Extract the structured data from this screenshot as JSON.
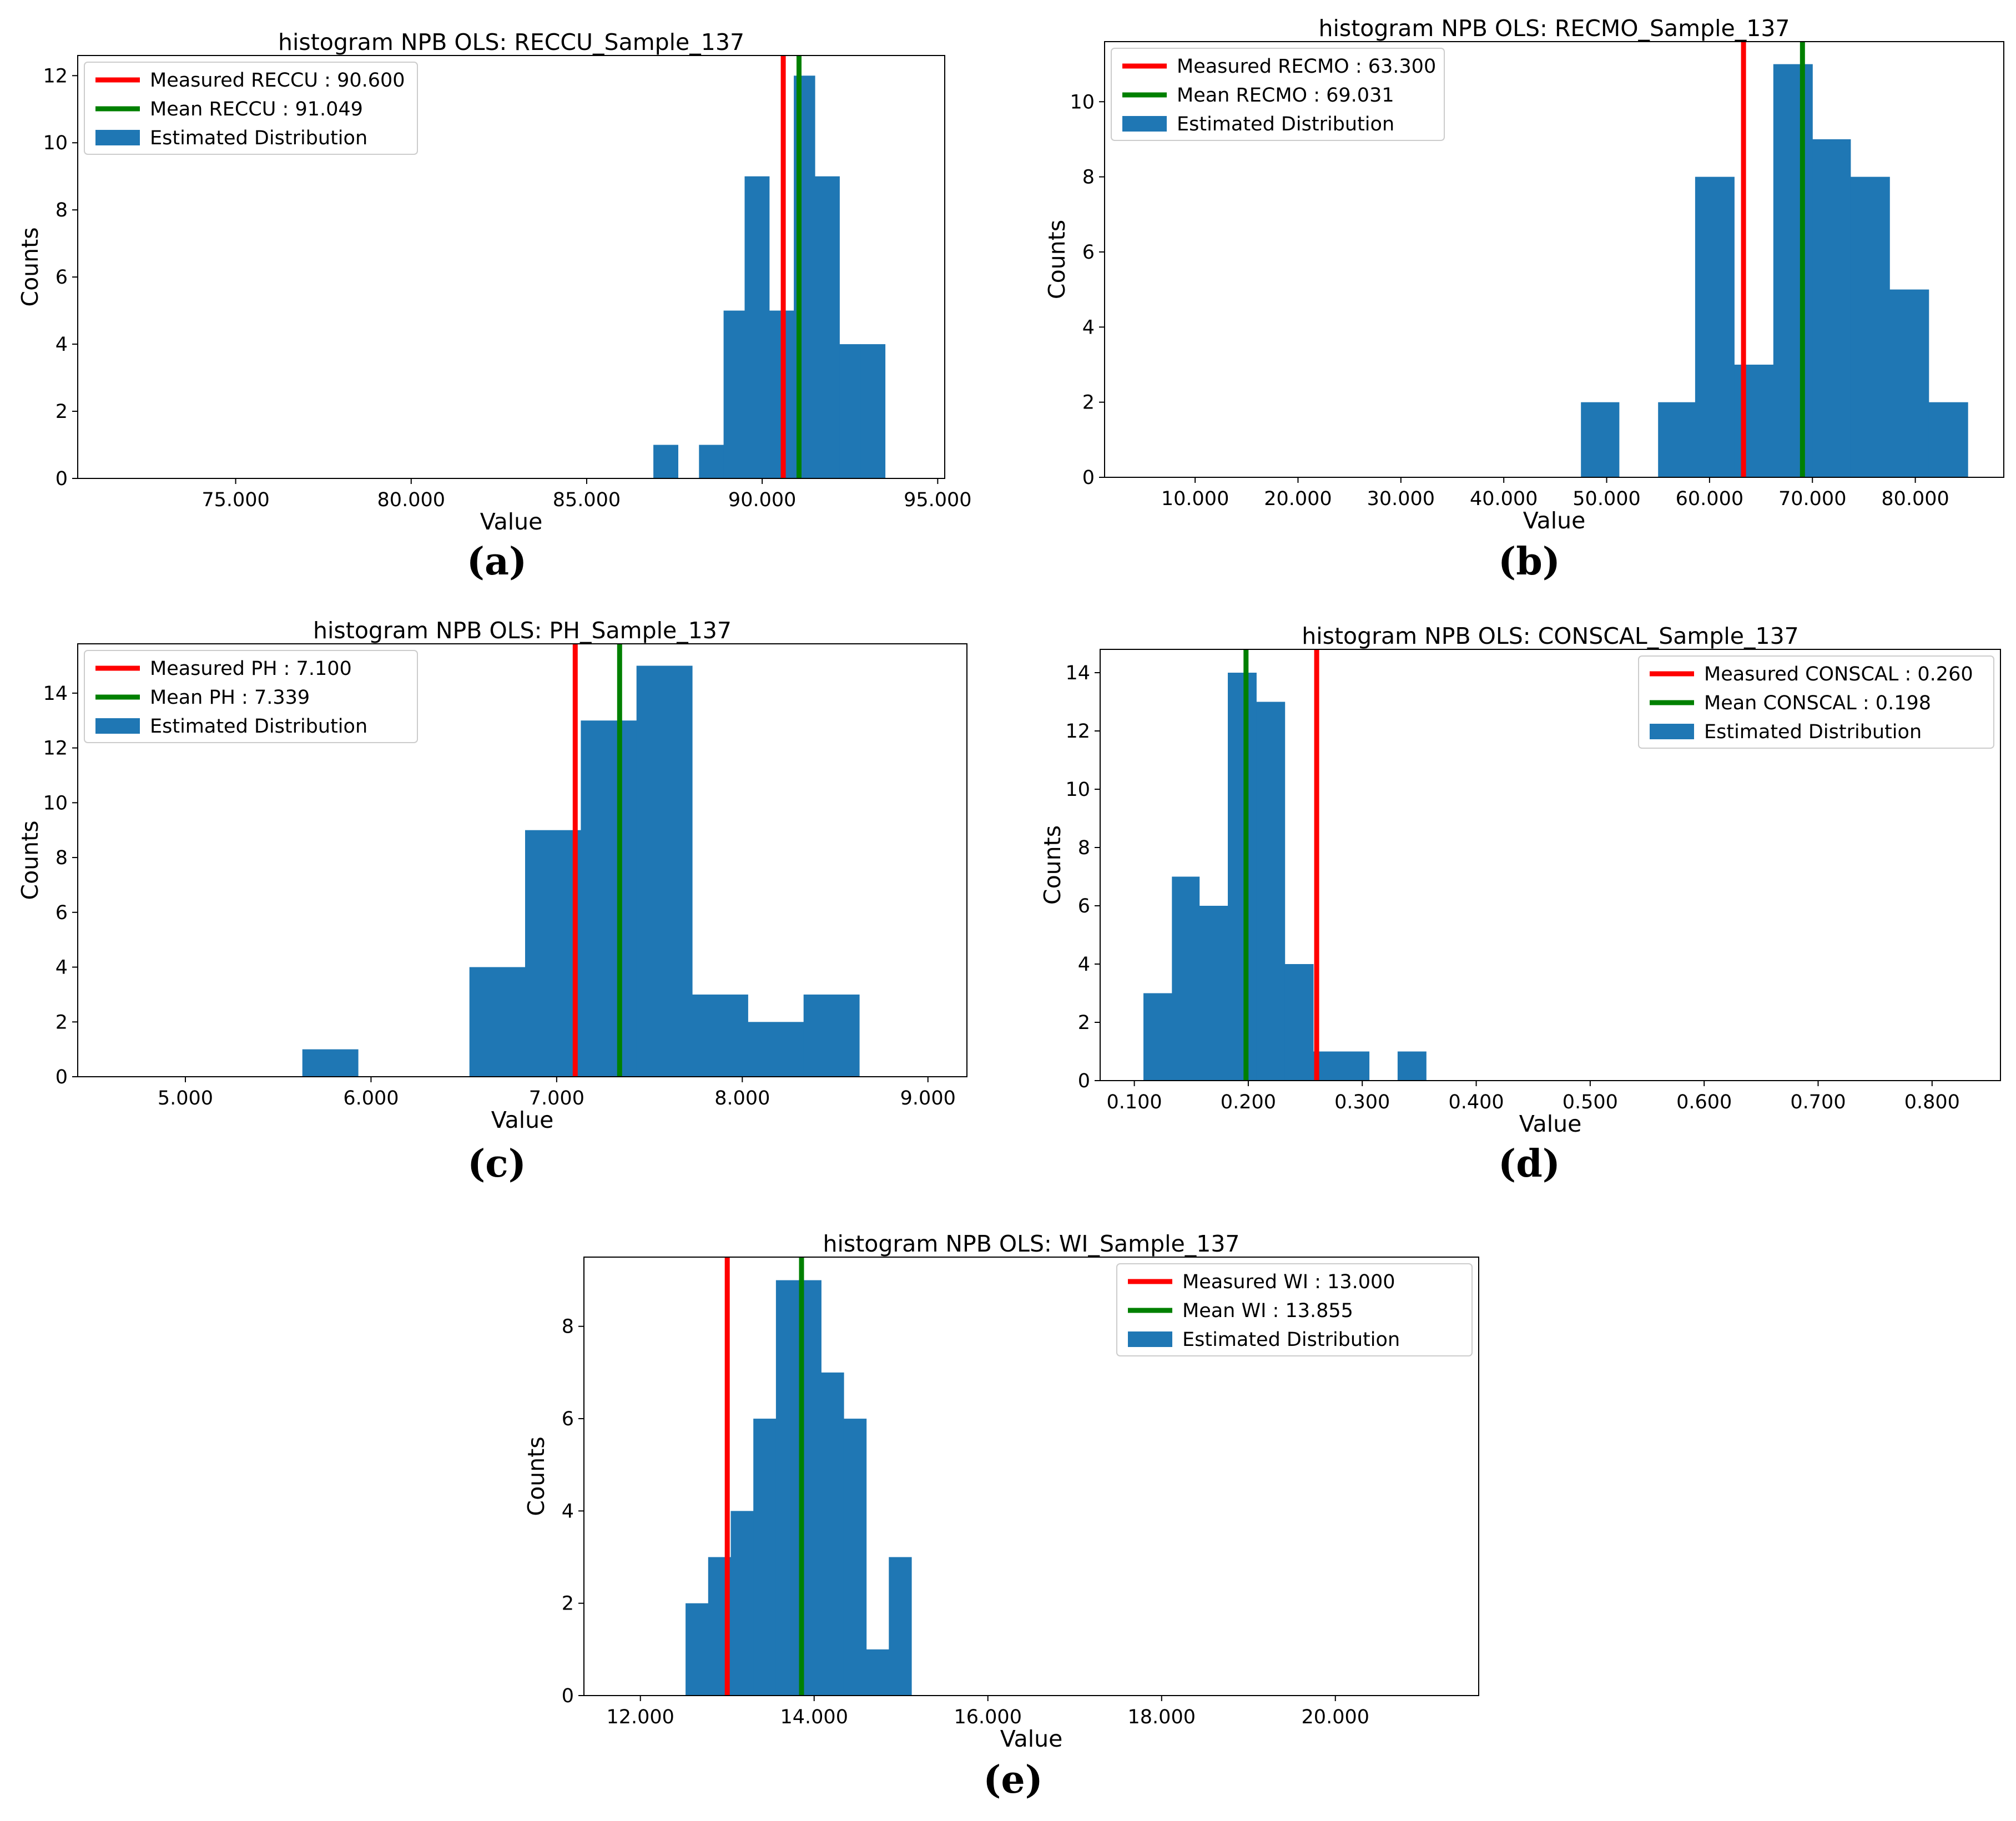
{
  "colors": {
    "bars": "#1f77b4",
    "measured": "#ff0000",
    "mean": "#008000",
    "axes": "#000000",
    "legend_border": "#cccccc"
  },
  "chart_data": [
    {
      "id": "a",
      "type": "bar",
      "caption": "(a)",
      "title": "histogram NPB OLS: RECCU_Sample_137",
      "xlabel": "Value",
      "ylabel": "Counts",
      "xlim": [
        70.5,
        95.2
      ],
      "ylim": [
        0,
        12.6
      ],
      "xticks": [
        75,
        80,
        85,
        90,
        95
      ],
      "xtick_labels": [
        "75.000",
        "80.000",
        "85.000",
        "90.000",
        "95.000"
      ],
      "yticks": [
        0,
        2,
        4,
        6,
        8,
        10,
        12
      ],
      "legend_position": "top-left",
      "measured": {
        "label": "Measured RECCU  : 90.600",
        "value": 90.6
      },
      "mean": {
        "label": "Mean RECCU  : 91.049",
        "value": 91.049
      },
      "dist_label": "Estimated Distribution",
      "bins": [
        {
          "x0": 86.9,
          "x1": 87.6,
          "count": 1
        },
        {
          "x0": 88.2,
          "x1": 88.9,
          "count": 1
        },
        {
          "x0": 88.9,
          "x1": 89.5,
          "count": 5
        },
        {
          "x0": 89.5,
          "x1": 90.2,
          "count": 9
        },
        {
          "x0": 90.2,
          "x1": 90.9,
          "count": 5
        },
        {
          "x0": 90.9,
          "x1": 91.5,
          "count": 12
        },
        {
          "x0": 91.5,
          "x1": 92.2,
          "count": 9
        },
        {
          "x0": 92.2,
          "x1": 92.8,
          "count": 4
        },
        {
          "x0": 92.8,
          "x1": 93.5,
          "count": 4
        }
      ]
    },
    {
      "id": "b",
      "type": "bar",
      "caption": "(b)",
      "title": "histogram NPB OLS: RECMO_Sample_137",
      "xlabel": "Value",
      "ylabel": "Counts",
      "xlim": [
        1.2,
        88.6
      ],
      "ylim": [
        0,
        11.6
      ],
      "xticks": [
        10,
        20,
        30,
        40,
        50,
        60,
        70,
        80
      ],
      "xtick_labels": [
        "10.000",
        "20.000",
        "30.000",
        "40.000",
        "50.000",
        "60.000",
        "70.000",
        "80.000"
      ],
      "yticks": [
        0,
        2,
        4,
        6,
        8,
        10
      ],
      "legend_position": "top-left",
      "measured": {
        "label": "Measured RECMO  : 63.300",
        "value": 63.3
      },
      "mean": {
        "label": "Mean RECMO  : 69.031",
        "value": 69.031
      },
      "dist_label": "Estimated Distribution",
      "bins": [
        {
          "x0": 47.5,
          "x1": 51.2,
          "count": 2
        },
        {
          "x0": 55.0,
          "x1": 58.6,
          "count": 2
        },
        {
          "x0": 58.6,
          "x1": 62.4,
          "count": 8
        },
        {
          "x0": 62.4,
          "x1": 66.2,
          "count": 3
        },
        {
          "x0": 66.2,
          "x1": 70.0,
          "count": 11
        },
        {
          "x0": 70.0,
          "x1": 73.7,
          "count": 9
        },
        {
          "x0": 73.7,
          "x1": 77.5,
          "count": 8
        },
        {
          "x0": 77.5,
          "x1": 81.3,
          "count": 5
        },
        {
          "x0": 81.3,
          "x1": 85.1,
          "count": 2
        }
      ]
    },
    {
      "id": "c",
      "type": "bar",
      "caption": "(c)",
      "title": "histogram NPB OLS: PH_Sample_137",
      "xlabel": "Value",
      "ylabel": "Counts",
      "xlim": [
        4.42,
        9.21
      ],
      "ylim": [
        0,
        15.8
      ],
      "xticks": [
        5,
        6,
        7,
        8,
        9
      ],
      "xtick_labels": [
        "5.000",
        "6.000",
        "7.000",
        "8.000",
        "9.000"
      ],
      "yticks": [
        0,
        2,
        4,
        6,
        8,
        10,
        12,
        14
      ],
      "legend_position": "top-left",
      "measured": {
        "label": "Measured PH  : 7.100",
        "value": 7.1
      },
      "mean": {
        "label": "Mean PH  : 7.339",
        "value": 7.339
      },
      "dist_label": "Estimated Distribution",
      "bins": [
        {
          "x0": 5.63,
          "x1": 5.93,
          "count": 1
        },
        {
          "x0": 6.53,
          "x1": 6.83,
          "count": 4
        },
        {
          "x0": 6.83,
          "x1": 7.13,
          "count": 9
        },
        {
          "x0": 7.13,
          "x1": 7.43,
          "count": 13
        },
        {
          "x0": 7.43,
          "x1": 7.73,
          "count": 15
        },
        {
          "x0": 7.73,
          "x1": 8.03,
          "count": 3
        },
        {
          "x0": 8.03,
          "x1": 8.33,
          "count": 2
        },
        {
          "x0": 8.33,
          "x1": 8.63,
          "count": 3
        }
      ]
    },
    {
      "id": "d",
      "type": "bar",
      "caption": "(d)",
      "title": "histogram NPB OLS: CONSCAL_Sample_137",
      "xlabel": "Value",
      "ylabel": "Counts",
      "xlim": [
        0.07,
        0.86
      ],
      "ylim": [
        0,
        14.8
      ],
      "xticks": [
        0.1,
        0.2,
        0.3,
        0.4,
        0.5,
        0.6,
        0.7,
        0.8
      ],
      "xtick_labels": [
        "0.100",
        "0.200",
        "0.300",
        "0.400",
        "0.500",
        "0.600",
        "0.700",
        "0.800"
      ],
      "yticks": [
        0,
        2,
        4,
        6,
        8,
        10,
        12,
        14
      ],
      "legend_position": "top-right",
      "measured": {
        "label": "Measured CONSCAL  : 0.260",
        "value": 0.26
      },
      "mean": {
        "label": "Mean CONSCAL  : 0.198",
        "value": 0.198
      },
      "dist_label": "Estimated Distribution",
      "bins": [
        {
          "x0": 0.108,
          "x1": 0.133,
          "count": 3
        },
        {
          "x0": 0.133,
          "x1": 0.157,
          "count": 7
        },
        {
          "x0": 0.157,
          "x1": 0.182,
          "count": 6
        },
        {
          "x0": 0.182,
          "x1": 0.207,
          "count": 14
        },
        {
          "x0": 0.207,
          "x1": 0.232,
          "count": 13
        },
        {
          "x0": 0.232,
          "x1": 0.257,
          "count": 4
        },
        {
          "x0": 0.257,
          "x1": 0.281,
          "count": 1
        },
        {
          "x0": 0.281,
          "x1": 0.306,
          "count": 1
        },
        {
          "x0": 0.331,
          "x1": 0.356,
          "count": 1
        }
      ]
    },
    {
      "id": "e",
      "type": "bar",
      "caption": "(e)",
      "title": "histogram NPB OLS: WI_Sample_137",
      "xlabel": "Value",
      "ylabel": "Counts",
      "xlim": [
        11.35,
        21.65
      ],
      "ylim": [
        0,
        9.5
      ],
      "xticks": [
        12,
        14,
        16,
        18,
        20
      ],
      "xtick_labels": [
        "12.000",
        "14.000",
        "16.000",
        "18.000",
        "20.000"
      ],
      "yticks": [
        0,
        2,
        4,
        6,
        8
      ],
      "legend_position": "top-right",
      "measured": {
        "label": "Measured WI  : 13.000",
        "value": 13.0
      },
      "mean": {
        "label": "Mean WI  : 13.855",
        "value": 13.855
      },
      "dist_label": "Estimated Distribution",
      "bins": [
        {
          "x0": 12.52,
          "x1": 12.78,
          "count": 2
        },
        {
          "x0": 12.78,
          "x1": 13.04,
          "count": 3
        },
        {
          "x0": 13.04,
          "x1": 13.3,
          "count": 4
        },
        {
          "x0": 13.3,
          "x1": 13.56,
          "count": 6
        },
        {
          "x0": 13.56,
          "x1": 13.82,
          "count": 9
        },
        {
          "x0": 13.82,
          "x1": 14.08,
          "count": 9
        },
        {
          "x0": 14.08,
          "x1": 14.34,
          "count": 7
        },
        {
          "x0": 14.34,
          "x1": 14.6,
          "count": 6
        },
        {
          "x0": 14.6,
          "x1": 14.86,
          "count": 1
        },
        {
          "x0": 14.86,
          "x1": 15.12,
          "count": 3
        }
      ]
    }
  ]
}
